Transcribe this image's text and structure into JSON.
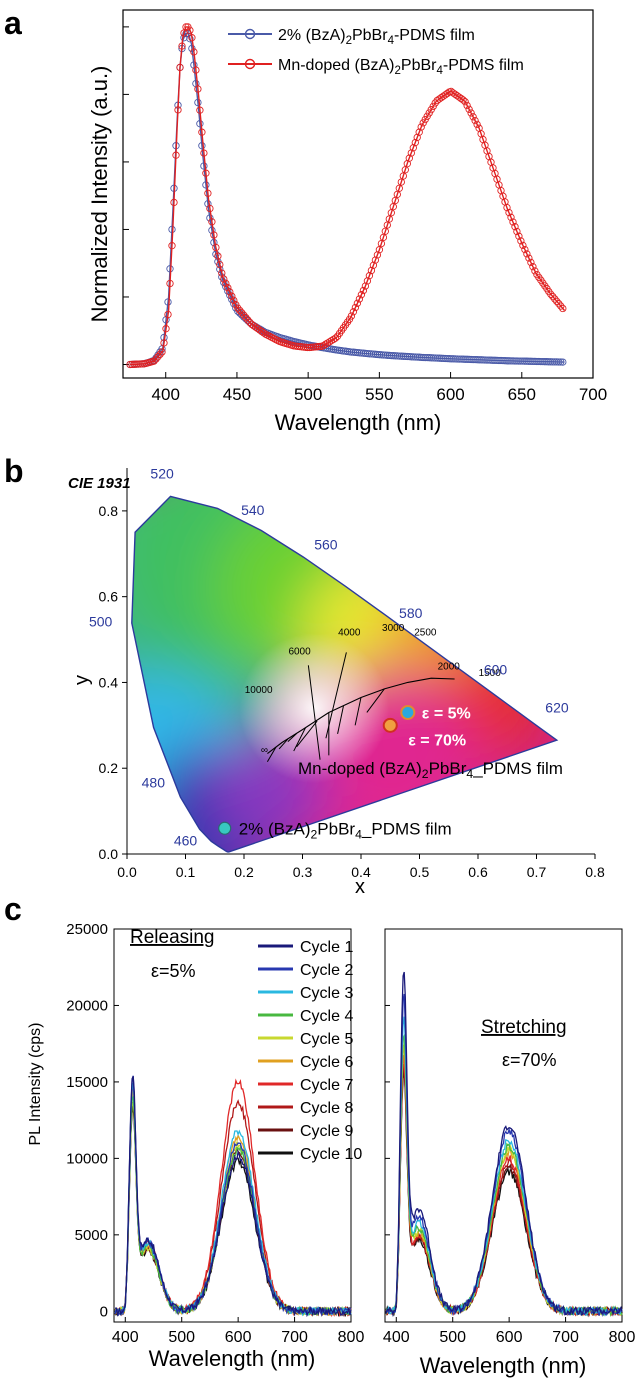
{
  "panels": {
    "a": {
      "letter": "a"
    },
    "b": {
      "letter": "b",
      "heading": "CIE 1931"
    },
    "c": {
      "letter": "c"
    }
  },
  "chart_data": [
    {
      "type": "line",
      "panel": "a",
      "xlabel": "Wavelength (nm)",
      "ylabel": "Normalized Intensity (a.u.)",
      "xlim": [
        370,
        700
      ],
      "xticks": [
        400,
        450,
        500,
        550,
        600,
        650,
        700
      ],
      "ylim": [
        -0.04,
        1.05
      ],
      "legend_position": "top-right",
      "marker": "open-circle",
      "series": [
        {
          "name": "2% (BzA)2PbBr4-PDMS film",
          "color": "#4a5aa8",
          "x": [
            375,
            385,
            392,
            398,
            402,
            405,
            408,
            410,
            412,
            414,
            416,
            418,
            420,
            423,
            426,
            430,
            435,
            440,
            450,
            460,
            470,
            480,
            490,
            500,
            510,
            520,
            530,
            540,
            550,
            560,
            580,
            600,
            620,
            640,
            660,
            680
          ],
          "y": [
            0,
            0.002,
            0.012,
            0.05,
            0.2,
            0.45,
            0.72,
            0.88,
            0.96,
            0.98,
            0.98,
            0.95,
            0.88,
            0.76,
            0.62,
            0.46,
            0.33,
            0.25,
            0.16,
            0.12,
            0.095,
            0.08,
            0.068,
            0.058,
            0.05,
            0.043,
            0.037,
            0.033,
            0.029,
            0.026,
            0.021,
            0.017,
            0.014,
            0.011,
            0.009,
            0.007
          ]
        },
        {
          "name": "Mn-doped (BzA)2PbBr4-PDMS film",
          "color": "#e02020",
          "x": [
            375,
            385,
            392,
            398,
            402,
            405,
            408,
            410,
            412,
            414,
            416,
            418,
            420,
            423,
            426,
            430,
            435,
            440,
            450,
            460,
            470,
            480,
            490,
            500,
            510,
            520,
            530,
            540,
            550,
            560,
            570,
            580,
            590,
            600,
            610,
            620,
            630,
            640,
            650,
            660,
            670,
            680
          ],
          "y": [
            0,
            0.002,
            0.01,
            0.04,
            0.16,
            0.4,
            0.7,
            0.88,
            0.97,
            1.0,
            1.0,
            0.98,
            0.92,
            0.8,
            0.66,
            0.49,
            0.35,
            0.26,
            0.17,
            0.12,
            0.09,
            0.068,
            0.055,
            0.05,
            0.054,
            0.08,
            0.14,
            0.23,
            0.34,
            0.47,
            0.6,
            0.71,
            0.78,
            0.81,
            0.78,
            0.7,
            0.58,
            0.46,
            0.36,
            0.27,
            0.21,
            0.16
          ]
        }
      ]
    },
    {
      "type": "scatter",
      "panel": "b",
      "title": "CIE 1931",
      "xlabel": "x",
      "ylabel": "y",
      "xlim": [
        0.0,
        0.8
      ],
      "ylim": [
        0.0,
        0.9
      ],
      "xticks": [
        0.0,
        0.1,
        0.2,
        0.3,
        0.4,
        0.5,
        0.6,
        0.7,
        0.8
      ],
      "yticks": [
        0.0,
        0.2,
        0.4,
        0.6,
        0.8
      ],
      "wavelength_labels": [
        "460",
        "480",
        "500",
        "520",
        "540",
        "560",
        "580",
        "600",
        "620"
      ],
      "temperature_labels": [
        "10000",
        "6000",
        "4000",
        "3000",
        "2500",
        "2000",
        "1500",
        "∞"
      ],
      "points": [
        {
          "x": 0.167,
          "y": 0.06,
          "label": "2% (BzA)2PbBr4_PDMS film",
          "color": "#38c8c0"
        },
        {
          "x": 0.48,
          "y": 0.33,
          "label": "ε = 5%",
          "color": "#2aa8e0"
        },
        {
          "x": 0.45,
          "y": 0.3,
          "label": "ε = 70%",
          "color": "#f0a040"
        }
      ],
      "point_group_label": "Mn-doped (BzA)2PbBr4_PDMS film"
    },
    {
      "type": "line",
      "panel": "c-left",
      "annotation": "Releasing",
      "strain": "ε=5%",
      "xlabel": "Wavelength (nm)",
      "ylabel": "PL Intensity (cps)",
      "xlim": [
        380,
        800
      ],
      "xticks": [
        400,
        500,
        600,
        700,
        800
      ],
      "ylim": [
        -700,
        25000
      ],
      "yticks": [
        0,
        5000,
        10000,
        15000,
        20000,
        25000
      ],
      "legend_position": "top-right",
      "series": [
        {
          "name": "Cycle 1",
          "color": "#1a1a7a",
          "peak1": 13800,
          "peak2": 10200
        },
        {
          "name": "Cycle 2",
          "color": "#2838b0",
          "peak1": 13500,
          "peak2": 11000
        },
        {
          "name": "Cycle 3",
          "color": "#2ab8e0",
          "peak1": 13200,
          "peak2": 11800
        },
        {
          "name": "Cycle 4",
          "color": "#48b840",
          "peak1": 12500,
          "peak2": 10600
        },
        {
          "name": "Cycle 5",
          "color": "#c8d830",
          "peak1": 12300,
          "peak2": 10900
        },
        {
          "name": "Cycle 6",
          "color": "#e0a020",
          "peak1": 12600,
          "peak2": 11400
        },
        {
          "name": "Cycle 7",
          "color": "#e02828",
          "peak1": 13000,
          "peak2": 15000
        },
        {
          "name": "Cycle 8",
          "color": "#b01818",
          "peak1": 12800,
          "peak2": 13600
        },
        {
          "name": "Cycle 9",
          "color": "#6a1010",
          "peak1": 12200,
          "peak2": 10500
        },
        {
          "name": "Cycle 10",
          "color": "#101010",
          "peak1": 11800,
          "peak2": 9800
        }
      ]
    },
    {
      "type": "line",
      "panel": "c-right",
      "annotation": "Stretching",
      "strain": "ε=70%",
      "xlabel": "Wavelength (nm)",
      "xlim": [
        380,
        800
      ],
      "xticks": [
        400,
        500,
        600,
        700,
        800
      ],
      "ylim": [
        -700,
        25000
      ],
      "series": [
        {
          "name": "Cycle 1",
          "color": "#1a1a7a",
          "peak1": 19800,
          "peak2": 12200
        },
        {
          "name": "Cycle 2",
          "color": "#2838b0",
          "peak1": 18200,
          "peak2": 11800
        },
        {
          "name": "Cycle 3",
          "color": "#2ab8e0",
          "peak1": 17000,
          "peak2": 11200
        },
        {
          "name": "Cycle 4",
          "color": "#48b840",
          "peak1": 16000,
          "peak2": 10800
        },
        {
          "name": "Cycle 5",
          "color": "#c8d830",
          "peak1": 15600,
          "peak2": 10600
        },
        {
          "name": "Cycle 6",
          "color": "#e0a020",
          "peak1": 15200,
          "peak2": 10400
        },
        {
          "name": "Cycle 7",
          "color": "#e02828",
          "peak1": 14800,
          "peak2": 10000
        },
        {
          "name": "Cycle 8",
          "color": "#b01818",
          "peak1": 14400,
          "peak2": 9700
        },
        {
          "name": "Cycle 9",
          "color": "#6a1010",
          "peak1": 14200,
          "peak2": 9400
        },
        {
          "name": "Cycle 10",
          "color": "#101010",
          "peak1": 13800,
          "peak2": 9100
        }
      ]
    }
  ]
}
